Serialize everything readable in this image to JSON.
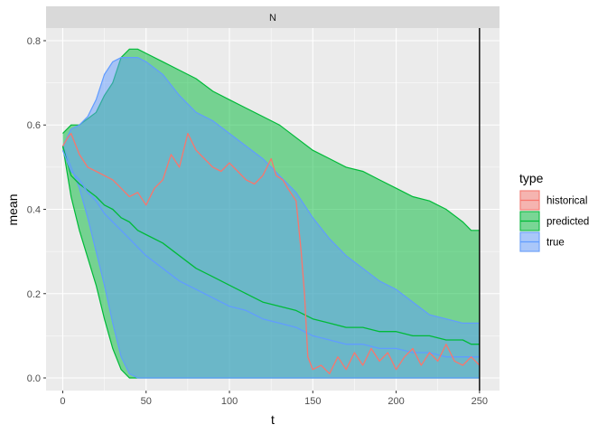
{
  "chart_data": {
    "type": "area",
    "facet_label": "N",
    "xlabel": "t",
    "ylabel": "mean",
    "xlim": [
      -10,
      262
    ],
    "ylim": [
      -0.03,
      0.83
    ],
    "x_ticks": [
      0,
      50,
      100,
      150,
      200,
      250
    ],
    "x_tick_labels": [
      "0",
      "50",
      "100",
      "150",
      "200",
      "250"
    ],
    "y_ticks": [
      0.0,
      0.2,
      0.4,
      0.6,
      0.8
    ],
    "y_tick_labels": [
      "0.0",
      "0.2",
      "0.4",
      "0.6",
      "0.8"
    ],
    "vline_x": 250,
    "grid": true,
    "legend": {
      "title": "type",
      "placement": "right",
      "entries": [
        "historical",
        "predicted",
        "true"
      ]
    },
    "colors": {
      "historical": "#F8766D",
      "predicted": "#00BA38",
      "true": "#619CFF",
      "panel_bg": "#EBEBEB",
      "grid": "#FFFFFF",
      "strip_bg": "#D9D9D9"
    },
    "series": [
      {
        "name": "predicted",
        "x": [
          0,
          5,
          10,
          20,
          25,
          30,
          35,
          40,
          45,
          50,
          60,
          70,
          80,
          90,
          100,
          110,
          120,
          130,
          140,
          150,
          160,
          170,
          180,
          190,
          200,
          210,
          220,
          230,
          240,
          245,
          250
        ],
        "upper": [
          0.58,
          0.6,
          0.6,
          0.63,
          0.67,
          0.7,
          0.76,
          0.78,
          0.78,
          0.77,
          0.75,
          0.73,
          0.71,
          0.68,
          0.66,
          0.64,
          0.62,
          0.6,
          0.57,
          0.54,
          0.52,
          0.5,
          0.49,
          0.47,
          0.45,
          0.43,
          0.42,
          0.4,
          0.37,
          0.35,
          0.35
        ],
        "mean": [
          0.55,
          0.48,
          0.46,
          0.43,
          0.41,
          0.4,
          0.38,
          0.37,
          0.35,
          0.34,
          0.32,
          0.29,
          0.26,
          0.24,
          0.22,
          0.2,
          0.18,
          0.17,
          0.16,
          0.14,
          0.13,
          0.12,
          0.12,
          0.11,
          0.11,
          0.1,
          0.1,
          0.09,
          0.09,
          0.08,
          0.08
        ],
        "lower": [
          0.55,
          0.43,
          0.35,
          0.22,
          0.14,
          0.07,
          0.02,
          0.0,
          0.0,
          0.0,
          0.0,
          0.0,
          0.0,
          0.0,
          0.0,
          0.0,
          0.0,
          0.0,
          0.0,
          0.0,
          0.0,
          0.0,
          0.0,
          0.0,
          0.0,
          0.0,
          0.0,
          0.0,
          0.0,
          0.0,
          0.0
        ]
      },
      {
        "name": "true",
        "x": [
          0,
          5,
          10,
          15,
          20,
          25,
          30,
          35,
          40,
          45,
          50,
          60,
          70,
          80,
          90,
          100,
          110,
          120,
          130,
          140,
          150,
          160,
          170,
          180,
          190,
          200,
          210,
          220,
          230,
          240,
          250
        ],
        "upper": [
          0.55,
          0.59,
          0.6,
          0.62,
          0.66,
          0.72,
          0.75,
          0.76,
          0.76,
          0.76,
          0.75,
          0.72,
          0.67,
          0.63,
          0.61,
          0.58,
          0.55,
          0.52,
          0.48,
          0.44,
          0.38,
          0.33,
          0.29,
          0.26,
          0.23,
          0.21,
          0.18,
          0.15,
          0.14,
          0.13,
          0.13
        ],
        "mean": [
          0.54,
          0.49,
          0.47,
          0.44,
          0.42,
          0.39,
          0.37,
          0.35,
          0.33,
          0.31,
          0.29,
          0.26,
          0.23,
          0.21,
          0.19,
          0.17,
          0.16,
          0.14,
          0.13,
          0.12,
          0.1,
          0.09,
          0.08,
          0.08,
          0.07,
          0.07,
          0.06,
          0.06,
          0.05,
          0.05,
          0.05
        ],
        "lower": [
          0.55,
          0.5,
          0.45,
          0.38,
          0.3,
          0.22,
          0.13,
          0.05,
          0.01,
          0.0,
          0.0,
          0.0,
          0.0,
          0.0,
          0.0,
          0.0,
          0.0,
          0.0,
          0.0,
          0.0,
          0.0,
          0.0,
          0.0,
          0.0,
          0.0,
          0.0,
          0.0,
          0.0,
          0.0,
          0.0,
          0.0
        ]
      },
      {
        "name": "historical",
        "x": [
          0,
          3,
          5,
          8,
          10,
          15,
          20,
          25,
          30,
          35,
          40,
          45,
          50,
          55,
          60,
          65,
          70,
          75,
          80,
          85,
          90,
          95,
          100,
          105,
          110,
          115,
          120,
          125,
          128,
          132,
          135,
          140,
          143,
          145,
          147,
          150,
          155,
          160,
          165,
          170,
          175,
          180,
          185,
          190,
          195,
          200,
          205,
          210,
          215,
          220,
          225,
          230,
          235,
          240,
          245,
          250
        ],
        "values": [
          0.55,
          0.57,
          0.58,
          0.55,
          0.53,
          0.5,
          0.49,
          0.48,
          0.47,
          0.45,
          0.43,
          0.44,
          0.41,
          0.45,
          0.47,
          0.53,
          0.5,
          0.58,
          0.54,
          0.52,
          0.5,
          0.49,
          0.51,
          0.49,
          0.47,
          0.46,
          0.48,
          0.52,
          0.48,
          0.47,
          0.45,
          0.42,
          0.3,
          0.2,
          0.05,
          0.02,
          0.03,
          0.01,
          0.05,
          0.02,
          0.06,
          0.03,
          0.07,
          0.04,
          0.06,
          0.02,
          0.05,
          0.07,
          0.03,
          0.06,
          0.04,
          0.08,
          0.04,
          0.03,
          0.05,
          0.03
        ]
      }
    ]
  }
}
